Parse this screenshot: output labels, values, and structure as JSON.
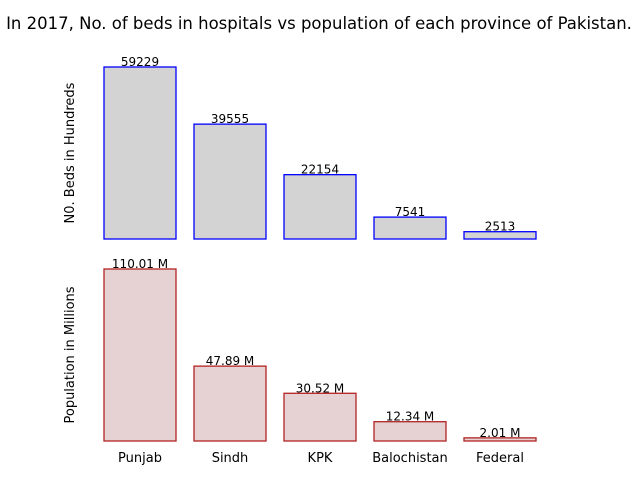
{
  "chart_data": {
    "title": "In 2017, No. of beds in hospitals vs population of each province of Pakistan.",
    "categories": [
      "Punjab",
      "Sindh",
      "KPK",
      "Balochistan",
      "Federal"
    ],
    "panels": [
      {
        "type": "bar",
        "ylabel": "N0. Beds in Hundreds",
        "values": [
          59229,
          39555,
          22154,
          7541,
          2513
        ],
        "labels": [
          "59229",
          "39555",
          "22154",
          "7541",
          "2513"
        ],
        "ylim": [
          0,
          59229
        ],
        "bar_fill": "#d3d3d3",
        "bar_edge": "#0000ff"
      },
      {
        "type": "bar",
        "ylabel": "Population in Millions",
        "values": [
          110.01,
          47.89,
          30.52,
          12.34,
          2.01
        ],
        "labels": [
          "110.01 M",
          "47.89 M",
          "30.52 M",
          "12.34 M",
          "2.01 M"
        ],
        "ylim": [
          0,
          110.01
        ],
        "bar_fill": "#e6d2d2",
        "bar_edge": "#b22222"
      }
    ],
    "grid": false,
    "legend": "none"
  }
}
